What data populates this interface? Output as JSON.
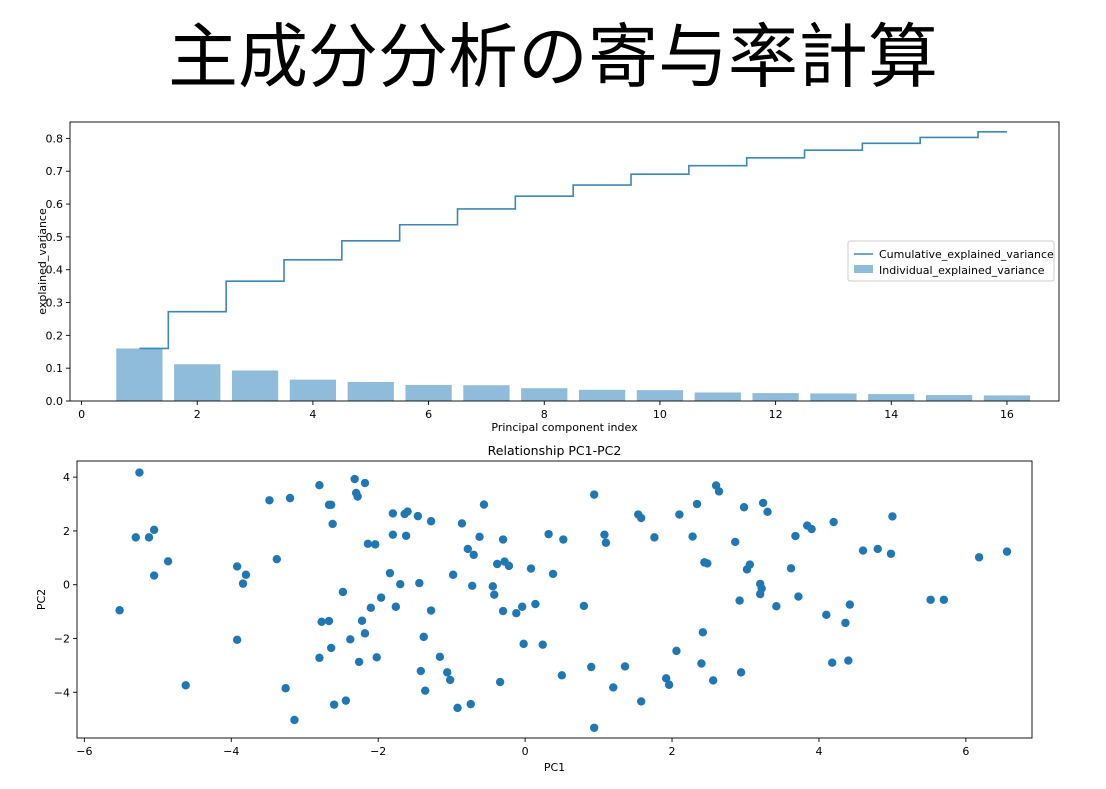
{
  "page": {
    "title": "主成分分析の寄与率計算"
  },
  "colors": {
    "bar": "#8fbcdb",
    "line": "#3b88b9",
    "point": "#1f77b4",
    "axis": "#000000"
  },
  "chart_data": [
    {
      "type": "bar",
      "title": "",
      "xlabel": "Principal component index",
      "ylabel": "explained_variance",
      "xlim": [
        -0.2,
        16.9
      ],
      "ylim": [
        0,
        0.85
      ],
      "xticks": [
        0,
        2,
        4,
        6,
        8,
        10,
        12,
        14,
        16
      ],
      "yticks": [
        0.0,
        0.1,
        0.2,
        0.3,
        0.4,
        0.5,
        0.6,
        0.7,
        0.8
      ],
      "legend_position": "center-right",
      "x": [
        1,
        2,
        3,
        4,
        5,
        6,
        7,
        8,
        9,
        10,
        11,
        12,
        13,
        14,
        15,
        16
      ],
      "series": [
        {
          "name": "Individual_explained_variance",
          "kind": "bar",
          "values": [
            0.16,
            0.112,
            0.093,
            0.065,
            0.058,
            0.049,
            0.048,
            0.039,
            0.034,
            0.033,
            0.026,
            0.024,
            0.023,
            0.021,
            0.018,
            0.017
          ]
        },
        {
          "name": "Cumulative_explained_variance",
          "kind": "step",
          "values": [
            0.16,
            0.272,
            0.365,
            0.43,
            0.488,
            0.537,
            0.585,
            0.624,
            0.658,
            0.691,
            0.717,
            0.741,
            0.764,
            0.785,
            0.803,
            0.82
          ]
        }
      ]
    },
    {
      "type": "scatter",
      "title": "Relationship PC1-PC2",
      "xlabel": "PC1",
      "ylabel": "PC2",
      "xlim": [
        -6.1,
        6.9
      ],
      "ylim": [
        -5.7,
        4.6
      ],
      "xticks": [
        -6,
        -4,
        -2,
        0,
        2,
        4,
        6
      ],
      "yticks": [
        -4,
        -2,
        0,
        2,
        4
      ],
      "points": [
        [
          -5.52,
          -0.95
        ],
        [
          -5.3,
          1.76
        ],
        [
          -5.25,
          4.17
        ],
        [
          -5.12,
          1.76
        ],
        [
          -5.05,
          2.04
        ],
        [
          -5.05,
          0.34
        ],
        [
          -4.86,
          0.87
        ],
        [
          -4.62,
          -3.74
        ],
        [
          -3.92,
          0.68
        ],
        [
          -3.92,
          -2.05
        ],
        [
          -3.84,
          0.04
        ],
        [
          -3.8,
          0.37
        ],
        [
          -3.48,
          3.14
        ],
        [
          -3.38,
          0.95
        ],
        [
          -3.26,
          -3.85
        ],
        [
          -3.2,
          3.22
        ],
        [
          -3.14,
          -5.03
        ],
        [
          -2.8,
          3.7
        ],
        [
          -2.8,
          -2.72
        ],
        [
          -2.77,
          -1.38
        ],
        [
          -2.67,
          -1.35
        ],
        [
          -2.67,
          2.97
        ],
        [
          -2.64,
          2.97
        ],
        [
          -2.64,
          -2.35
        ],
        [
          -2.62,
          2.26
        ],
        [
          -2.6,
          -4.46
        ],
        [
          -2.48,
          -0.27
        ],
        [
          -2.44,
          -4.31
        ],
        [
          -2.38,
          -2.03
        ],
        [
          -2.32,
          3.93
        ],
        [
          -2.3,
          3.41
        ],
        [
          -2.28,
          3.28
        ],
        [
          -2.26,
          -2.87
        ],
        [
          -2.22,
          -1.34
        ],
        [
          -2.18,
          3.78
        ],
        [
          -2.18,
          -1.81
        ],
        [
          -2.14,
          1.52
        ],
        [
          -2.1,
          -0.86
        ],
        [
          -2.04,
          1.5
        ],
        [
          -2.02,
          -2.7
        ],
        [
          -1.96,
          -0.48
        ],
        [
          -1.84,
          0.43
        ],
        [
          -1.8,
          2.65
        ],
        [
          -1.8,
          1.86
        ],
        [
          -1.76,
          -0.82
        ],
        [
          -1.7,
          0.02
        ],
        [
          -1.64,
          2.63
        ],
        [
          -1.62,
          1.82
        ],
        [
          -1.6,
          2.72
        ],
        [
          -1.46,
          2.55
        ],
        [
          -1.44,
          0.06
        ],
        [
          -1.42,
          -3.21
        ],
        [
          -1.38,
          -1.94
        ],
        [
          -1.36,
          -3.94
        ],
        [
          -1.28,
          -0.96
        ],
        [
          -1.28,
          2.36
        ],
        [
          -1.16,
          -2.68
        ],
        [
          -1.06,
          -3.26
        ],
        [
          -1.02,
          -3.54
        ],
        [
          -0.98,
          0.37
        ],
        [
          -0.92,
          -4.58
        ],
        [
          -0.86,
          2.28
        ],
        [
          -0.78,
          1.33
        ],
        [
          -0.74,
          -4.44
        ],
        [
          -0.72,
          -0.04
        ],
        [
          -0.7,
          1.11
        ],
        [
          -0.62,
          1.78
        ],
        [
          -0.56,
          2.98
        ],
        [
          -0.44,
          -0.06
        ],
        [
          -0.42,
          -0.37
        ],
        [
          -0.38,
          0.77
        ],
        [
          -0.34,
          -3.62
        ],
        [
          -0.3,
          1.68
        ],
        [
          -0.3,
          -0.98
        ],
        [
          -0.28,
          0.86
        ],
        [
          -0.22,
          0.7
        ],
        [
          -0.12,
          -1.06
        ],
        [
          -0.04,
          -0.82
        ],
        [
          -0.02,
          -2.2
        ],
        [
          0.08,
          0.6
        ],
        [
          0.14,
          -0.72
        ],
        [
          0.24,
          -2.23
        ],
        [
          0.32,
          1.88
        ],
        [
          0.38,
          0.4
        ],
        [
          0.5,
          -3.37
        ],
        [
          0.52,
          1.68
        ],
        [
          0.8,
          -0.79
        ],
        [
          0.9,
          -3.06
        ],
        [
          0.94,
          3.35
        ],
        [
          0.94,
          -5.32
        ],
        [
          1.08,
          1.86
        ],
        [
          1.1,
          1.56
        ],
        [
          1.2,
          -3.82
        ],
        [
          1.36,
          -3.04
        ],
        [
          1.54,
          2.61
        ],
        [
          1.58,
          2.48
        ],
        [
          1.58,
          -4.34
        ],
        [
          1.76,
          1.76
        ],
        [
          1.92,
          -3.48
        ],
        [
          1.96,
          -3.72
        ],
        [
          2.06,
          -2.46
        ],
        [
          2.1,
          2.61
        ],
        [
          2.28,
          1.79
        ],
        [
          2.34,
          3.0
        ],
        [
          2.4,
          -2.93
        ],
        [
          2.42,
          -1.77
        ],
        [
          2.44,
          0.83
        ],
        [
          2.48,
          0.79
        ],
        [
          2.56,
          -3.56
        ],
        [
          2.6,
          3.69
        ],
        [
          2.64,
          3.47
        ],
        [
          2.86,
          1.59
        ],
        [
          2.92,
          -0.59
        ],
        [
          2.94,
          -3.26
        ],
        [
          2.98,
          2.88
        ],
        [
          3.02,
          0.57
        ],
        [
          3.06,
          0.75
        ],
        [
          3.2,
          0.03
        ],
        [
          3.2,
          -0.35
        ],
        [
          3.22,
          -0.14
        ],
        [
          3.24,
          3.04
        ],
        [
          3.3,
          2.71
        ],
        [
          3.42,
          -0.8
        ],
        [
          3.62,
          0.61
        ],
        [
          3.68,
          1.81
        ],
        [
          3.72,
          -0.44
        ],
        [
          3.84,
          2.2
        ],
        [
          3.9,
          2.07
        ],
        [
          4.1,
          -1.12
        ],
        [
          4.18,
          -2.9
        ],
        [
          4.2,
          2.33
        ],
        [
          4.36,
          -1.42
        ],
        [
          4.4,
          -2.82
        ],
        [
          4.42,
          -0.74
        ],
        [
          4.6,
          1.27
        ],
        [
          4.8,
          1.33
        ],
        [
          4.98,
          1.15
        ],
        [
          5.0,
          2.54
        ],
        [
          5.52,
          -0.56
        ],
        [
          5.7,
          -0.56
        ],
        [
          6.18,
          1.02
        ],
        [
          6.56,
          1.23
        ]
      ]
    }
  ]
}
